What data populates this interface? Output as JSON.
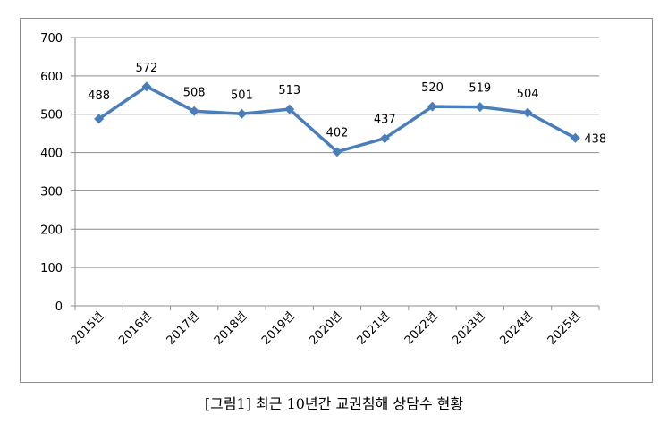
{
  "chart_data": {
    "type": "line",
    "categories": [
      "2015년",
      "2016년",
      "2017년",
      "2018년",
      "2019년",
      "2020년",
      "2021년",
      "2022년",
      "2023년",
      "2024년",
      "2025년"
    ],
    "series": [
      {
        "values": [
          488,
          572,
          508,
          501,
          513,
          402,
          437,
          520,
          519,
          504,
          438
        ]
      }
    ],
    "ylim": [
      0,
      700
    ],
    "yticks": [
      0,
      100,
      200,
      300,
      400,
      500,
      600,
      700
    ],
    "grid": true,
    "data_labels": true,
    "line_color": "#4a7ebb"
  },
  "caption": "[그림1] 최근 10년간 교권침해 상담수 현황"
}
